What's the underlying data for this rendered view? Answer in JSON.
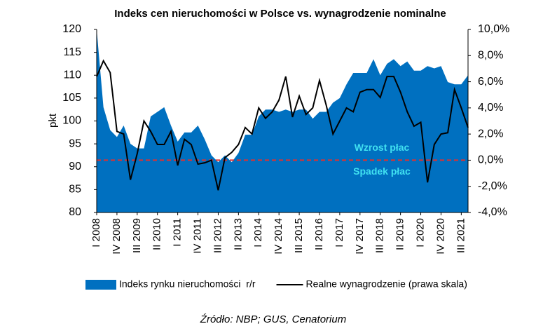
{
  "chart_data": {
    "type": "area-line",
    "title": "Indeks cen nieruchomości w Polsce vs. wynagrodzenie nominalne",
    "y_label": "pkt",
    "source": "Źródło: NBP; GUS, Cenatorium",
    "categories": [
      "I 2008",
      null,
      null,
      "IV 2008",
      null,
      null,
      "III 2009",
      null,
      null,
      "II 2010",
      null,
      null,
      "I 2011",
      null,
      null,
      "IV 2011",
      null,
      null,
      "III 2012",
      null,
      null,
      "II 2013",
      null,
      null,
      "I 2014",
      null,
      null,
      "IV 2014",
      null,
      null,
      "III 2015",
      null,
      null,
      "II 2016",
      null,
      null,
      "I 2017",
      null,
      null,
      "IV 2017",
      null,
      null,
      "III 2018",
      null,
      null,
      "II 2019",
      null,
      null,
      "I 2020",
      null,
      null,
      "IV 2020",
      null,
      null,
      "III 2021",
      null
    ],
    "series": [
      {
        "name": "Indeks rynku nieruchomości  r/r",
        "type": "area",
        "color": "#0070c0",
        "axis": "y",
        "values": [
          120,
          103,
          98,
          96.5,
          99,
          95,
          94,
          94,
          101,
          102,
          103,
          99,
          95.5,
          97.5,
          97.5,
          99,
          96,
          92.5,
          91,
          92.5,
          91,
          93,
          97,
          97,
          101,
          102.5,
          102.5,
          102,
          102.5,
          102,
          102.5,
          102.5,
          100.5,
          102,
          102,
          104,
          105,
          108,
          110.5,
          110.5,
          110.5,
          113.5,
          110,
          112.5,
          113.5,
          112,
          113,
          111,
          111,
          112,
          111.5,
          112,
          108.5,
          108,
          108,
          110
        ]
      },
      {
        "name": "Realne wynagrodzenie (prawa skala)",
        "type": "line",
        "color": "#000000",
        "axis": "y2",
        "values": [
          6.4,
          7.6,
          6.7,
          2.2,
          2.0,
          -1.5,
          0.5,
          3.0,
          2.2,
          1.2,
          1.2,
          2.2,
          -0.4,
          1.6,
          1.2,
          -0.3,
          -0.2,
          0.0,
          -2.3,
          0.2,
          0.6,
          1.2,
          2.5,
          2.0,
          4.0,
          3.2,
          3.7,
          4.6,
          6.4,
          3.3,
          4.9,
          3.5,
          4.0,
          6.1,
          4.2,
          2.0,
          3.0,
          4.0,
          3.7,
          5.2,
          5.4,
          5.4,
          4.8,
          6.4,
          6.4,
          5.2,
          3.7,
          2.6,
          2.9,
          -1.7,
          1.2,
          2.0,
          2.1,
          5.4,
          4.0,
          2.5
        ]
      }
    ],
    "ylim": [
      80,
      120
    ],
    "yticks": [
      80,
      85,
      90,
      95,
      100,
      105,
      110,
      115,
      120
    ],
    "y2lim": [
      -4,
      10
    ],
    "y2ticks": [
      {
        "value": -4,
        "label": "-4,0%"
      },
      {
        "value": -2,
        "label": "-2,0%"
      },
      {
        "value": 0,
        "label": "0,0%"
      },
      {
        "value": 2,
        "label": "2,0%"
      },
      {
        "value": 4,
        "label": "4,0%"
      },
      {
        "value": 6,
        "label": "6,0%"
      },
      {
        "value": 8,
        "label": "8,0%"
      },
      {
        "value": 10,
        "label": "10,0%"
      }
    ],
    "reference_line": {
      "axis": "y2",
      "value": 0,
      "color": "#e03030"
    },
    "annotations": [
      {
        "text": "Wzrost płac",
        "color": "#40e0f0"
      },
      {
        "text": "Spadek płac",
        "color": "#40e0f0"
      }
    ],
    "legend": "bottom"
  }
}
